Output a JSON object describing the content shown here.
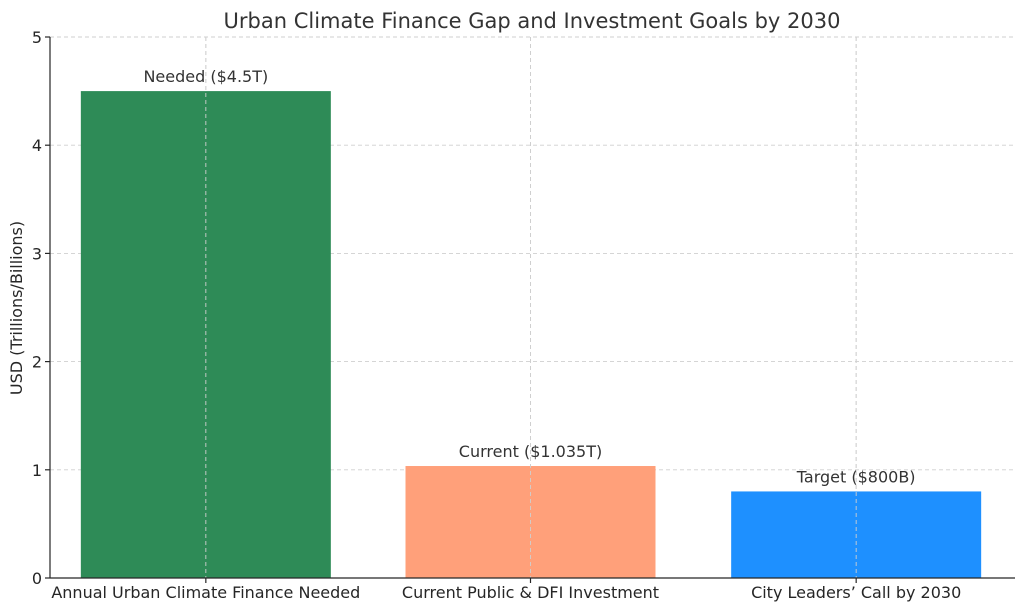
{
  "chart_data": {
    "type": "bar",
    "title": "Urban Climate Finance Gap and Investment Goals by 2030",
    "xlabel": "",
    "ylabel": "USD (Trillions/Billions)",
    "ylim": [
      0,
      5
    ],
    "yticks": [
      "0",
      "1",
      "2",
      "3",
      "4",
      "5"
    ],
    "grid": true,
    "categories": [
      "Annual Urban Climate Finance Needed",
      "Current Public & DFI Investment",
      "City Leaders’ Call by 2030"
    ],
    "values": [
      4.5,
      1.035,
      0.8
    ],
    "bar_labels": [
      "Needed ($4.5T)",
      "Current ($1.035T)",
      "Target ($800B)"
    ],
    "colors": [
      "#2e8b57",
      "#ffa07a",
      "#1e90ff"
    ]
  }
}
